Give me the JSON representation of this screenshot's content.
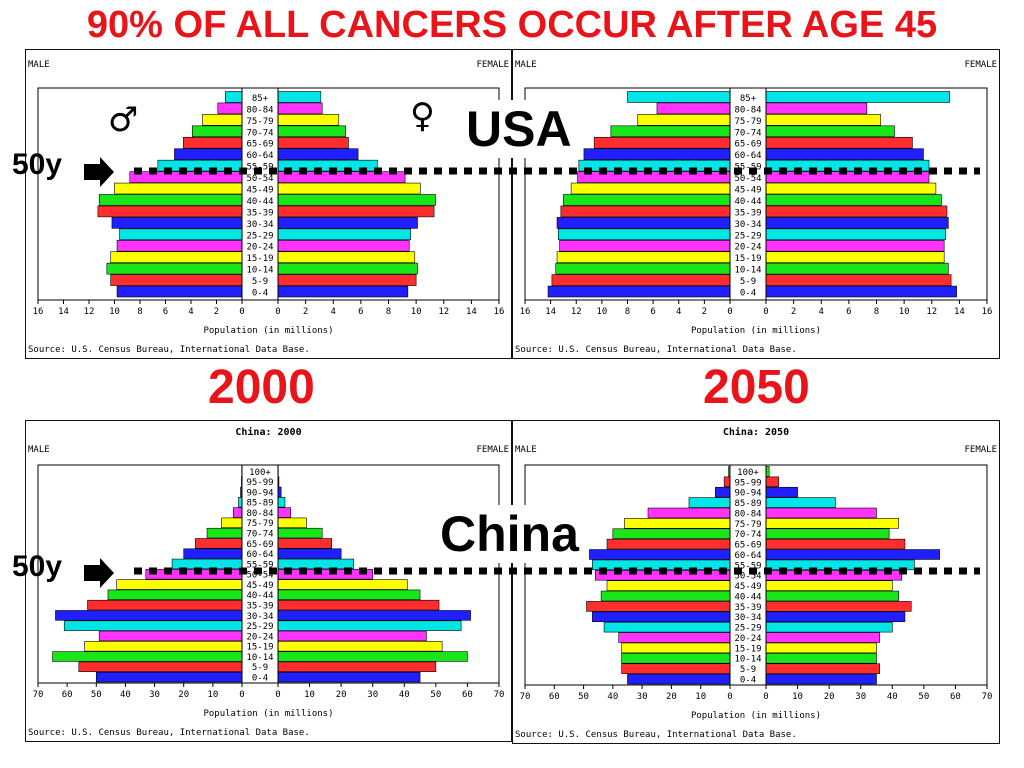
{
  "title": "90% OF ALL CANCERS OCCUR AFTER AGE 45",
  "labels": {
    "usa": "USA",
    "china": "China",
    "year_left": "2000",
    "year_right": "2050",
    "age_marker": "50y",
    "male_symbol": "♂",
    "female_symbol": "♀"
  },
  "colors": {
    "title": "#e8141a",
    "palette": [
      "#1f1fff",
      "#ff2e2e",
      "#19e619",
      "#ffff00",
      "#ff33ff",
      "#00e5e5"
    ]
  },
  "chart_data": [
    {
      "type": "bar",
      "title": "",
      "male_label": "MALE",
      "female_label": "FEMALE",
      "xlabel": "Population (in millions)",
      "source": "Source: U.S. Census Bureau, International Data Base.",
      "xlim": [
        0,
        16
      ],
      "ticks": [
        16,
        14,
        12,
        10,
        8,
        6,
        4,
        2,
        0
      ],
      "categories": [
        "0-4",
        "5-9",
        "10-14",
        "15-19",
        "20-24",
        "25-29",
        "30-34",
        "35-39",
        "40-44",
        "45-49",
        "50-54",
        "55-59",
        "60-64",
        "65-69",
        "70-74",
        "75-79",
        "80-84",
        "85+"
      ],
      "series": [
        {
          "name": "MALE",
          "values": [
            9.8,
            10.3,
            10.6,
            10.3,
            9.8,
            9.6,
            10.2,
            11.3,
            11.2,
            10.0,
            8.8,
            6.6,
            5.3,
            4.6,
            3.9,
            3.1,
            1.9,
            1.3
          ]
        },
        {
          "name": "FEMALE",
          "values": [
            9.4,
            10.0,
            10.1,
            9.9,
            9.5,
            9.6,
            10.1,
            11.3,
            11.4,
            10.3,
            9.2,
            7.2,
            5.8,
            5.1,
            4.9,
            4.4,
            3.2,
            3.1
          ]
        }
      ]
    },
    {
      "type": "bar",
      "title": "",
      "male_label": "MALE",
      "female_label": "FEMALE",
      "xlabel": "Population (in millions)",
      "source": "Source: U.S. Census Bureau, International Data Base.",
      "xlim": [
        0,
        16
      ],
      "ticks": [
        16,
        14,
        12,
        10,
        8,
        6,
        4,
        2,
        0
      ],
      "categories": [
        "0-4",
        "5-9",
        "10-14",
        "15-19",
        "20-24",
        "25-29",
        "30-34",
        "35-39",
        "40-44",
        "45-49",
        "50-54",
        "55-59",
        "60-64",
        "65-69",
        "70-74",
        "75-79",
        "80-84",
        "85+"
      ],
      "series": [
        {
          "name": "MALE",
          "values": [
            14.2,
            13.9,
            13.6,
            13.5,
            13.3,
            13.4,
            13.5,
            13.2,
            13.0,
            12.4,
            11.9,
            11.8,
            11.4,
            10.6,
            9.3,
            7.2,
            5.7,
            8.0
          ]
        },
        {
          "name": "FEMALE",
          "values": [
            13.8,
            13.4,
            13.2,
            12.9,
            12.9,
            13.0,
            13.2,
            13.1,
            12.7,
            12.3,
            11.8,
            11.8,
            11.4,
            10.6,
            9.3,
            8.3,
            7.3,
            13.3
          ]
        }
      ]
    },
    {
      "type": "bar",
      "title": "China: 2000",
      "male_label": "MALE",
      "female_label": "FEMALE",
      "xlabel": "Population (in millions)",
      "source": "Source: U.S. Census Bureau, International Data Base.",
      "xlim": [
        0,
        70
      ],
      "ticks": [
        70,
        60,
        50,
        40,
        30,
        20,
        10,
        0
      ],
      "categories": [
        "0-4",
        "5-9",
        "10-14",
        "15-19",
        "20-24",
        "25-29",
        "30-34",
        "35-39",
        "40-44",
        "45-49",
        "50-54",
        "55-59",
        "60-64",
        "65-69",
        "70-74",
        "75-79",
        "80-84",
        "85-89",
        "90-94",
        "95-99",
        "100+"
      ],
      "series": [
        {
          "name": "MALE",
          "values": [
            50,
            56,
            65,
            54,
            49,
            61,
            64,
            53,
            46,
            43,
            33,
            24,
            20,
            16,
            12,
            7,
            3,
            1.2,
            0.5,
            0.2,
            0.1
          ]
        },
        {
          "name": "FEMALE",
          "values": [
            45,
            50,
            60,
            52,
            47,
            58,
            61,
            51,
            45,
            41,
            30,
            24,
            20,
            17,
            14,
            9,
            4,
            2.2,
            1,
            0.3,
            0.1
          ]
        }
      ]
    },
    {
      "type": "bar",
      "title": "China: 2050",
      "male_label": "MALE",
      "female_label": "FEMALE",
      "xlabel": "Population (in millions)",
      "source": "Source: U.S. Census Bureau, International Data Base.",
      "xlim": [
        0,
        70
      ],
      "ticks": [
        70,
        60,
        50,
        40,
        30,
        20,
        10,
        0
      ],
      "categories": [
        "0-4",
        "5-9",
        "10-14",
        "15-19",
        "20-24",
        "25-29",
        "30-34",
        "35-39",
        "40-44",
        "45-49",
        "50-54",
        "55-59",
        "60-64",
        "65-69",
        "70-74",
        "75-79",
        "80-84",
        "85-89",
        "90-94",
        "95-99",
        "100+"
      ],
      "series": [
        {
          "name": "MALE",
          "values": [
            35,
            37,
            37,
            37,
            38,
            43,
            47,
            49,
            44,
            42,
            46,
            47,
            48,
            42,
            40,
            36,
            28,
            14,
            5,
            2,
            0.5
          ]
        },
        {
          "name": "FEMALE",
          "values": [
            35,
            36,
            35,
            35,
            36,
            40,
            44,
            46,
            42,
            40,
            43,
            47,
            55,
            44,
            39,
            42,
            35,
            22,
            10,
            4,
            1
          ]
        }
      ]
    }
  ]
}
